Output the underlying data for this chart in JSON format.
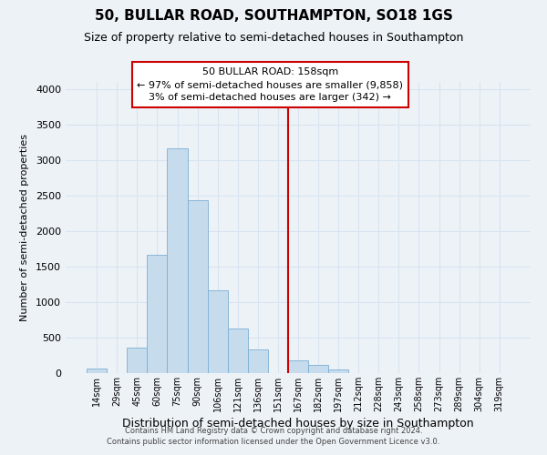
{
  "title": "50, BULLAR ROAD, SOUTHAMPTON, SO18 1GS",
  "subtitle": "Size of property relative to semi-detached houses in Southampton",
  "xlabel": "Distribution of semi-detached houses by size in Southampton",
  "ylabel": "Number of semi-detached properties",
  "footer_line1": "Contains HM Land Registry data © Crown copyright and database right 2024.",
  "footer_line2": "Contains public sector information licensed under the Open Government Licence v3.0.",
  "bin_labels": [
    "14sqm",
    "29sqm",
    "45sqm",
    "60sqm",
    "75sqm",
    "90sqm",
    "106sqm",
    "121sqm",
    "136sqm",
    "151sqm",
    "167sqm",
    "182sqm",
    "197sqm",
    "212sqm",
    "228sqm",
    "243sqm",
    "258sqm",
    "273sqm",
    "289sqm",
    "304sqm",
    "319sqm"
  ],
  "bar_heights": [
    65,
    0,
    360,
    1670,
    3170,
    2440,
    1160,
    630,
    330,
    0,
    185,
    115,
    55,
    0,
    0,
    0,
    0,
    0,
    0,
    0,
    0
  ],
  "bar_color": "#c6dcec",
  "bar_edge_color": "#7bafd4",
  "vline_x_idx": 10,
  "vline_color": "#cc0000",
  "annotation_title": "50 BULLAR ROAD: 158sqm",
  "annotation_line1": "← 97% of semi-detached houses are smaller (9,858)",
  "annotation_line2": "3% of semi-detached houses are larger (342) →",
  "ylim": [
    0,
    4100
  ],
  "yticks": [
    0,
    500,
    1000,
    1500,
    2000,
    2500,
    3000,
    3500,
    4000
  ],
  "bg_color": "#edf2f7",
  "grid_color": "#d8e4f0",
  "title_fontsize": 11,
  "subtitle_fontsize": 9
}
